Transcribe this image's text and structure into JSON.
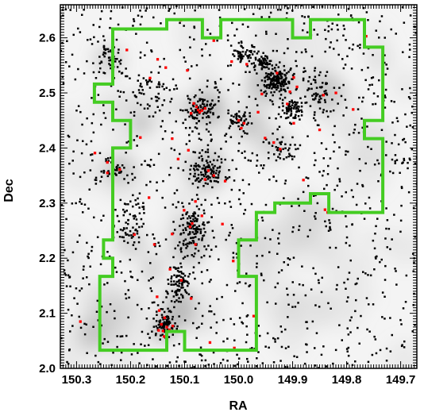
{
  "chart_data": {
    "type": "scatter",
    "xlabel": "RA",
    "ylabel": "Dec",
    "xlim": [
      150.33,
      149.67
    ],
    "ylim": [
      2.0,
      2.66
    ],
    "x_ticks": [
      150.3,
      150.2,
      150.1,
      150.0,
      149.9,
      149.8,
      149.7
    ],
    "x_tick_labels": [
      "150.3",
      "150.2",
      "150.1",
      "150.0",
      "149.9",
      "149.8",
      "149.7"
    ],
    "y_ticks": [
      2.0,
      2.1,
      2.2,
      2.3,
      2.4,
      2.5,
      2.6
    ],
    "y_tick_labels": [
      "2.0",
      "2.1",
      "2.2",
      "2.3",
      "2.4",
      "2.5",
      "2.6"
    ],
    "grid": false,
    "legend": "none",
    "colors": {
      "black_points": "#000000",
      "red_points": "#ff0000",
      "boundary": "#44cc22",
      "density_background": "#c8c8c8"
    },
    "boundary_polygon": [
      [
        150.257,
        2.033
      ],
      [
        150.133,
        2.033
      ],
      [
        150.133,
        2.067
      ],
      [
        150.1,
        2.067
      ],
      [
        150.1,
        2.033
      ],
      [
        149.967,
        2.033
      ],
      [
        149.967,
        2.167
      ],
      [
        150.0,
        2.167
      ],
      [
        150.0,
        2.233
      ],
      [
        149.967,
        2.233
      ],
      [
        149.967,
        2.283
      ],
      [
        149.933,
        2.283
      ],
      [
        149.933,
        2.3
      ],
      [
        149.867,
        2.3
      ],
      [
        149.867,
        2.317
      ],
      [
        149.833,
        2.317
      ],
      [
        149.833,
        2.283
      ],
      [
        149.733,
        2.283
      ],
      [
        149.733,
        2.417
      ],
      [
        149.767,
        2.417
      ],
      [
        149.767,
        2.45
      ],
      [
        149.733,
        2.45
      ],
      [
        149.733,
        2.583
      ],
      [
        149.767,
        2.583
      ],
      [
        149.767,
        2.633
      ],
      [
        149.867,
        2.633
      ],
      [
        149.867,
        2.6
      ],
      [
        149.9,
        2.6
      ],
      [
        149.9,
        2.633
      ],
      [
        150.033,
        2.633
      ],
      [
        150.033,
        2.6
      ],
      [
        150.067,
        2.6
      ],
      [
        150.067,
        2.633
      ],
      [
        150.133,
        2.633
      ],
      [
        150.133,
        2.616
      ],
      [
        150.233,
        2.616
      ],
      [
        150.233,
        2.516
      ],
      [
        150.267,
        2.516
      ],
      [
        150.267,
        2.483
      ],
      [
        150.233,
        2.483
      ],
      [
        150.233,
        2.45
      ],
      [
        150.2,
        2.45
      ],
      [
        150.2,
        2.4
      ],
      [
        150.233,
        2.4
      ],
      [
        150.233,
        2.233
      ],
      [
        150.25,
        2.233
      ],
      [
        150.25,
        2.2
      ],
      [
        150.233,
        2.2
      ],
      [
        150.233,
        2.167
      ],
      [
        150.257,
        2.167
      ]
    ],
    "series": [
      {
        "color": "#ff0000",
        "points": [
          [
            150.107,
            2.632
          ],
          [
            150.046,
            2.595
          ],
          [
            150.207,
            2.578
          ],
          [
            150.15,
            2.561
          ],
          [
            150.135,
            2.546
          ],
          [
            150.095,
            2.541
          ],
          [
            150.013,
            2.557
          ],
          [
            149.985,
            2.552
          ],
          [
            149.929,
            2.536
          ],
          [
            149.898,
            2.528
          ],
          [
            149.892,
            2.511
          ],
          [
            149.905,
            2.502
          ],
          [
            149.91,
            2.48
          ],
          [
            149.843,
            2.496
          ],
          [
            149.82,
            2.5
          ],
          [
            149.898,
            2.445
          ],
          [
            149.85,
            2.433
          ],
          [
            150.083,
            2.481
          ],
          [
            150.078,
            2.475
          ],
          [
            150.075,
            2.469
          ],
          [
            150.072,
            2.465
          ],
          [
            150.068,
            2.468
          ],
          [
            150.062,
            2.472
          ],
          [
            150.088,
            2.463
          ],
          [
            150.0,
            2.45
          ],
          [
            149.99,
            2.445
          ],
          [
            149.995,
            2.436
          ],
          [
            149.951,
            2.418
          ],
          [
            149.935,
            2.41
          ],
          [
            149.923,
            2.398
          ],
          [
            150.123,
            2.417
          ],
          [
            150.093,
            2.396
          ],
          [
            150.112,
            2.38
          ],
          [
            150.182,
            2.419
          ],
          [
            150.266,
            2.391
          ],
          [
            150.243,
            2.374
          ],
          [
            150.22,
            2.361
          ],
          [
            150.243,
            2.355
          ],
          [
            150.056,
            2.359
          ],
          [
            150.046,
            2.35
          ],
          [
            150.062,
            2.343
          ],
          [
            150.025,
            2.34
          ],
          [
            150.08,
            2.303
          ],
          [
            150.101,
            2.287
          ],
          [
            150.068,
            2.277
          ],
          [
            150.086,
            2.263
          ],
          [
            150.09,
            2.257
          ],
          [
            150.123,
            2.244
          ],
          [
            150.193,
            2.243
          ],
          [
            150.156,
            2.225
          ],
          [
            150.08,
            2.225
          ],
          [
            150.03,
            2.262
          ],
          [
            149.84,
            2.288
          ],
          [
            149.835,
            2.283
          ],
          [
            150.127,
            2.18
          ],
          [
            150.106,
            2.16
          ],
          [
            150.088,
            2.127
          ],
          [
            150.151,
            2.13
          ],
          [
            150.147,
            2.105
          ],
          [
            150.137,
            2.092
          ],
          [
            150.143,
            2.08
          ],
          [
            150.133,
            2.075
          ],
          [
            150.128,
            2.07
          ],
          [
            150.122,
            2.077
          ],
          [
            150.14,
            2.068
          ],
          [
            150.138,
            2.058
          ],
          [
            150.148,
            2.069
          ],
          [
            150.293,
            2.085
          ],
          [
            150.053,
            2.047
          ],
          [
            150.008,
            2.037
          ],
          [
            149.972,
            2.095
          ],
          [
            150.01,
            2.195
          ],
          [
            150.166,
            2.31
          ],
          [
            149.88,
            2.342
          ],
          [
            149.764,
            2.603
          ],
          [
            149.788,
            2.47
          ],
          [
            150.233,
            2.54
          ],
          [
            150.164,
            2.527
          ],
          [
            149.964,
            2.465
          ],
          [
            149.957,
            2.498
          ]
        ]
      }
    ]
  }
}
